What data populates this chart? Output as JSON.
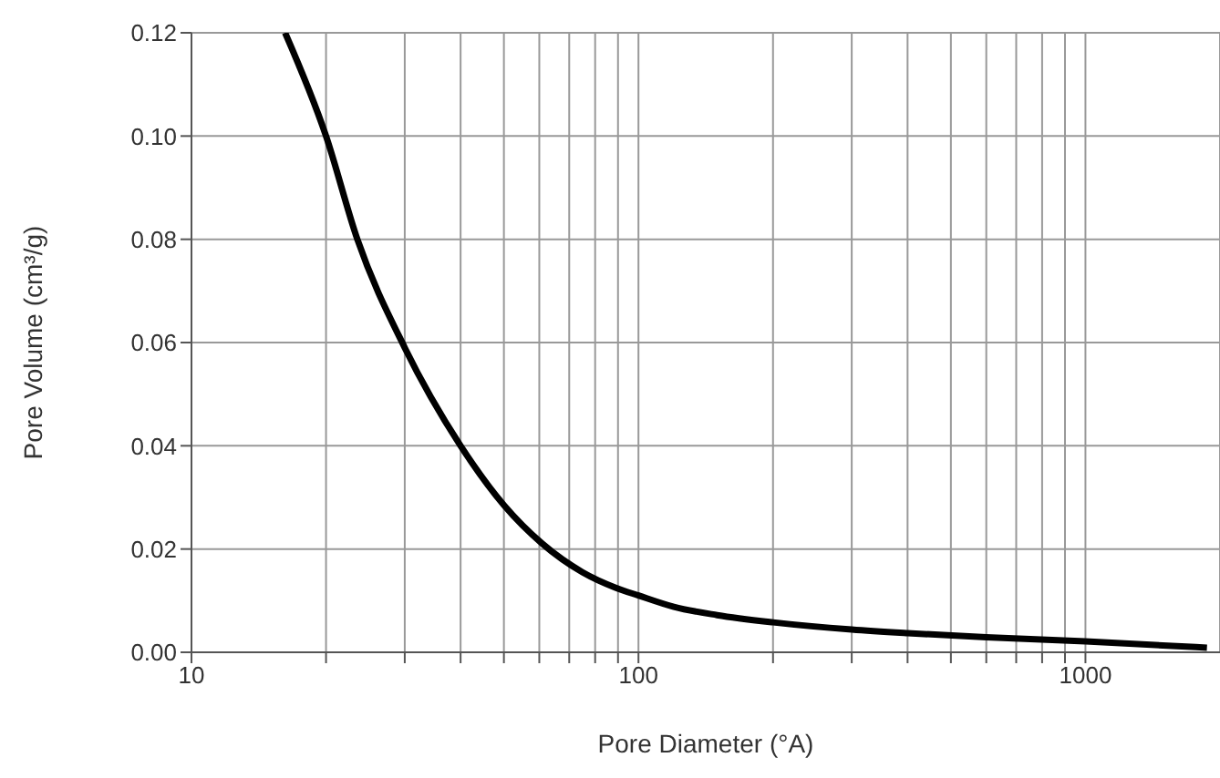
{
  "chart_data": {
    "type": "line",
    "xlabel": "Pore Diameter (°A)",
    "ylabel": "Pore Volume (cm³/g)",
    "x": [
      16.2,
      20,
      23.5,
      30,
      40,
      50,
      61,
      75,
      89,
      100,
      120,
      150,
      200,
      300,
      400,
      600,
      1000,
      1870
    ],
    "series": [
      {
        "color": "#000000",
        "values": [
          0.12,
          0.1,
          0.08,
          0.059,
          0.04,
          0.0285,
          0.021,
          0.0155,
          0.0125,
          0.011,
          0.0088,
          0.0072,
          0.0058,
          0.0044,
          0.0037,
          0.0029,
          0.0021,
          0.0009
        ]
      }
    ],
    "log": "x",
    "xlim": [
      10,
      2000
    ],
    "xticks": [
      10,
      {
        "value": 20,
        "label": null
      },
      {
        "value": 30,
        "label": null
      },
      {
        "value": 40,
        "label": null
      },
      {
        "value": 50,
        "label": null
      },
      {
        "value": 60,
        "label": null
      },
      {
        "value": 70,
        "label": null
      },
      {
        "value": 80,
        "label": null
      },
      {
        "value": 90,
        "label": null
      },
      100,
      {
        "value": 200,
        "label": null
      },
      {
        "value": 300,
        "label": null
      },
      {
        "value": 400,
        "label": null
      },
      {
        "value": 500,
        "label": null
      },
      {
        "value": 600,
        "label": null
      },
      {
        "value": 700,
        "label": null
      },
      {
        "value": 800,
        "label": null
      },
      {
        "value": 900,
        "label": null
      },
      1000
    ],
    "ylim": [
      0,
      0.12
    ],
    "yticks": [
      {
        "value": 0,
        "label": "0.00"
      },
      {
        "value": 0.02,
        "label": "0.02"
      },
      {
        "value": 0.04,
        "label": "0.04"
      },
      {
        "value": 0.06,
        "label": "0.06"
      },
      {
        "value": 0.08,
        "label": "0.08"
      },
      {
        "value": 0.1,
        "label": "0.10"
      },
      {
        "value": 0.12,
        "label": "0.12"
      }
    ],
    "grid": true,
    "marker": "none",
    "line_style": "solid"
  }
}
